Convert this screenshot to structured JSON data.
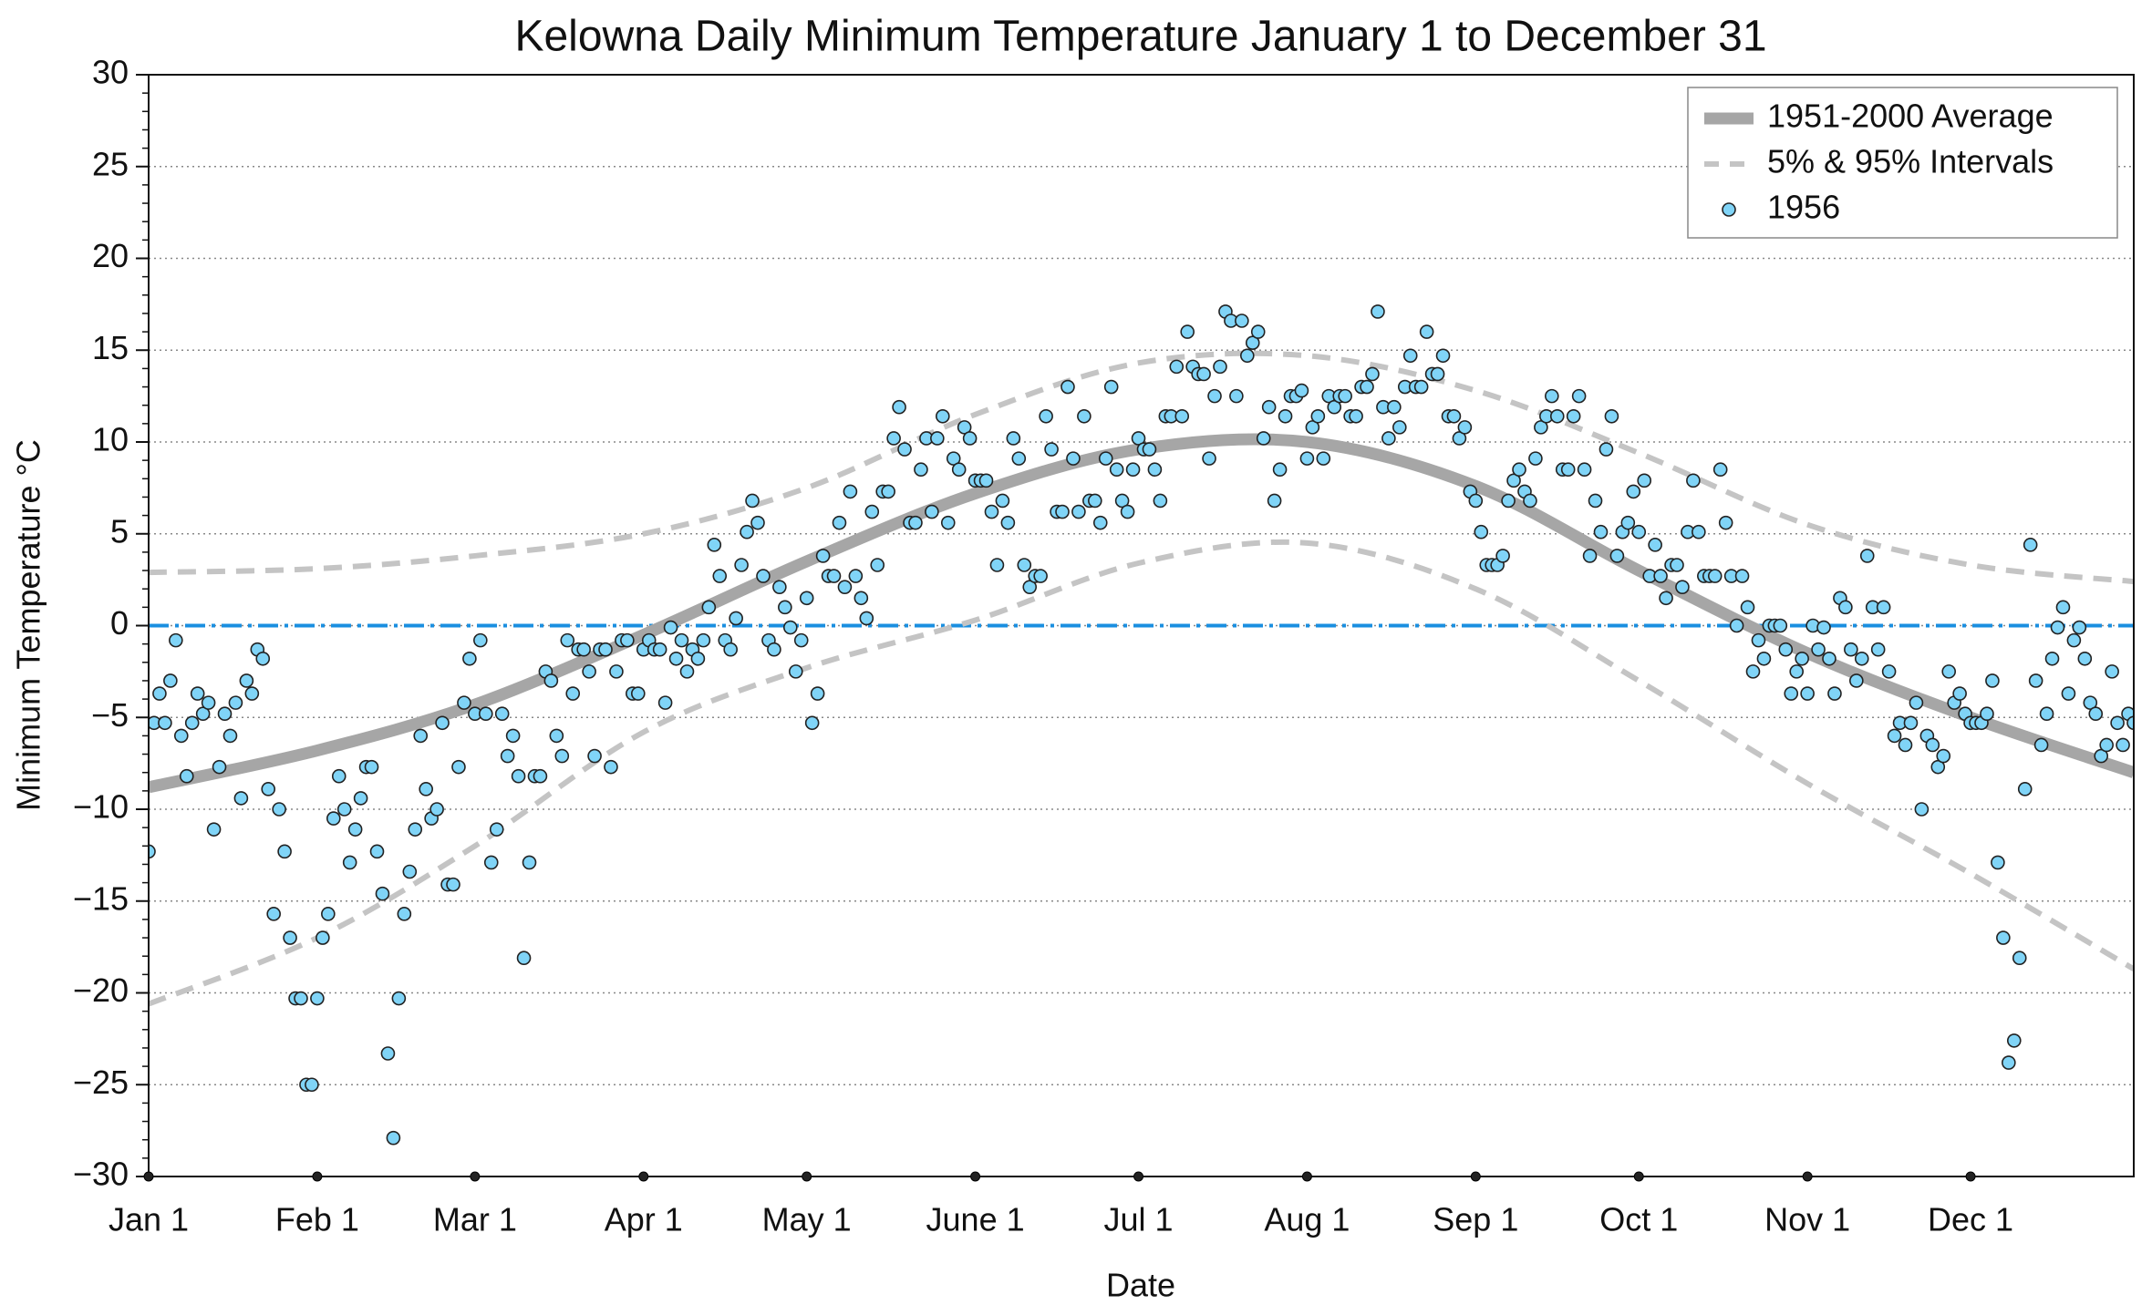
{
  "chart_data": {
    "type": "scatter",
    "title": "Kelowna Daily Minimum Temperature January 1 to December 31",
    "xlabel": "Date",
    "ylabel": "Minimum Temperature °C",
    "xlim": [
      1,
      366
    ],
    "xticks": [
      {
        "value": 1,
        "label": "Jan 1"
      },
      {
        "value": 32,
        "label": "Feb 1"
      },
      {
        "value": 61,
        "label": "Mar 1"
      },
      {
        "value": 92,
        "label": "Apr 1"
      },
      {
        "value": 122,
        "label": "May 1"
      },
      {
        "value": 153,
        "label": "June 1"
      },
      {
        "value": 183,
        "label": "Jul 1"
      },
      {
        "value": 214,
        "label": "Aug 1"
      },
      {
        "value": 245,
        "label": "Sep 1"
      },
      {
        "value": 275,
        "label": "Oct 1"
      },
      {
        "value": 306,
        "label": "Nov 1"
      },
      {
        "value": 336,
        "label": "Dec 1"
      }
    ],
    "ylim": [
      -30,
      30
    ],
    "yticks": [
      {
        "value": -30,
        "label": "−30"
      },
      {
        "value": -25,
        "label": "−25"
      },
      {
        "value": -20,
        "label": "−20"
      },
      {
        "value": -15,
        "label": "−15"
      },
      {
        "value": -10,
        "label": "−10"
      },
      {
        "value": -5,
        "label": "−5"
      },
      0,
      5,
      10,
      15,
      20,
      25,
      30
    ],
    "grid": true,
    "reference_line": {
      "value": 0,
      "color": "#1a8fe0"
    },
    "legend": "upper right",
    "series": [
      {
        "name": "1951-2000 Average",
        "kind": "line",
        "color": "#a6a6a6",
        "x": [
          1,
          32,
          61,
          92,
          122,
          153,
          183,
          214,
          245,
          275,
          306,
          336,
          366
        ],
        "values": [
          -8.8,
          -6.8,
          -4.3,
          -0.5,
          3.5,
          7.2,
          9.6,
          10.0,
          7.6,
          3.0,
          -1.5,
          -5.0,
          -8.0
        ]
      },
      {
        "name": "5% & 95% Intervals",
        "kind": "band",
        "color": "#c4c4c4",
        "x": [
          1,
          32,
          61,
          92,
          122,
          153,
          183,
          214,
          245,
          275,
          306,
          336,
          366
        ],
        "upper": [
          2.9,
          3.1,
          3.8,
          5.0,
          7.5,
          11.5,
          14.3,
          14.7,
          12.8,
          9.4,
          5.5,
          3.3,
          2.4
        ],
        "lower": [
          -20.6,
          -17.0,
          -12.0,
          -5.8,
          -2.3,
          0.3,
          3.4,
          4.5,
          2.0,
          -3.0,
          -8.6,
          -13.5,
          -18.7
        ]
      },
      {
        "name": "1956",
        "kind": "points",
        "color": "#80d4f7",
        "x": [
          1,
          2,
          3,
          4,
          5,
          6,
          7,
          8,
          9,
          10,
          11,
          12,
          13,
          14,
          15,
          16,
          17,
          18,
          19,
          20,
          21,
          22,
          23,
          24,
          25,
          26,
          27,
          28,
          29,
          30,
          31,
          32,
          33,
          34,
          35,
          36,
          37,
          38,
          39,
          40,
          41,
          42,
          43,
          44,
          45,
          46,
          47,
          48,
          49,
          50,
          51,
          52,
          53,
          54,
          55,
          56,
          57,
          58,
          59,
          60,
          61,
          62,
          63,
          64,
          65,
          66,
          67,
          68,
          69,
          70,
          71,
          72,
          73,
          74,
          75,
          76,
          77,
          78,
          79,
          80,
          81,
          82,
          83,
          84,
          85,
          86,
          87,
          88,
          89,
          90,
          91,
          92,
          93,
          94,
          95,
          96,
          97,
          98,
          99,
          100,
          101,
          102,
          103,
          104,
          105,
          106,
          107,
          108,
          109,
          110,
          111,
          112,
          113,
          114,
          115,
          116,
          117,
          118,
          119,
          120,
          121,
          122,
          123,
          124,
          125,
          126,
          127,
          128,
          129,
          130,
          131,
          132,
          133,
          134,
          135,
          136,
          137,
          138,
          139,
          140,
          141,
          142,
          143,
          144,
          145,
          146,
          147,
          148,
          149,
          150,
          151,
          152,
          153,
          154,
          155,
          156,
          157,
          158,
          159,
          160,
          161,
          162,
          163,
          164,
          165,
          166,
          167,
          168,
          169,
          170,
          171,
          172,
          173,
          174,
          175,
          176,
          177,
          178,
          179,
          180,
          181,
          182,
          183,
          184,
          185,
          186,
          187,
          188,
          189,
          190,
          191,
          192,
          193,
          194,
          195,
          196,
          197,
          198,
          199,
          200,
          201,
          202,
          203,
          204,
          205,
          206,
          207,
          208,
          209,
          210,
          211,
          212,
          213,
          214,
          215,
          216,
          217,
          218,
          219,
          220,
          221,
          222,
          223,
          224,
          225,
          226,
          227,
          228,
          229,
          230,
          231,
          232,
          233,
          234,
          235,
          236,
          237,
          238,
          239,
          240,
          241,
          242,
          243,
          244,
          245,
          246,
          247,
          248,
          249,
          250,
          251,
          252,
          253,
          254,
          255,
          256,
          257,
          258,
          259,
          260,
          261,
          262,
          263,
          264,
          265,
          266,
          267,
          268,
          269,
          270,
          271,
          272,
          273,
          274,
          275,
          276,
          277,
          278,
          279,
          280,
          281,
          282,
          283,
          284,
          285,
          286,
          287,
          288,
          289,
          290,
          291,
          292,
          293,
          294,
          295,
          296,
          297,
          298,
          299,
          300,
          301,
          302,
          303,
          304,
          305,
          306,
          307,
          308,
          309,
          310,
          311,
          312,
          313,
          314,
          315,
          316,
          317,
          318,
          319,
          320,
          321,
          322,
          323,
          324,
          325,
          326,
          327,
          328,
          329,
          330,
          331,
          332,
          333,
          334,
          335,
          336,
          337,
          338,
          339,
          340,
          341,
          342,
          343,
          344,
          345,
          346,
          347,
          348,
          349,
          350,
          351,
          352,
          353,
          354,
          355,
          356,
          357,
          358,
          359,
          360,
          361,
          362,
          363,
          364,
          365,
          366
        ],
        "values": [
          -12.3,
          -5.3,
          -3.7,
          -5.3,
          -3,
          -0.8,
          -6,
          -8.2,
          -5.3,
          -3.7,
          -4.8,
          -4.2,
          -11.1,
          -7.7,
          -4.8,
          -6,
          -4.2,
          -9.4,
          -3,
          -3.7,
          -1.3,
          -1.8,
          -8.9,
          -15.7,
          -10,
          -12.3,
          -17,
          -20.3,
          -20.3,
          -25,
          -25,
          -20.3,
          -17,
          -15.7,
          -10.5,
          -8.2,
          -10,
          -12.9,
          -11.1,
          -9.4,
          -7.7,
          -7.7,
          -12.3,
          -14.6,
          -23.3,
          -27.9,
          -20.3,
          -15.7,
          -13.4,
          -11.1,
          -6,
          -8.9,
          -10.5,
          -10,
          -5.3,
          -14.1,
          -14.1,
          -7.7,
          -4.2,
          -1.8,
          -4.8,
          -0.8,
          -4.8,
          -12.9,
          -11.1,
          -4.8,
          -7.1,
          -6,
          -8.2,
          -18.1,
          -12.9,
          -8.2,
          -8.2,
          -2.5,
          -3,
          -6,
          -7.1,
          -0.8,
          -3.7,
          -1.3,
          -1.3,
          -2.5,
          -7.1,
          -1.3,
          -1.3,
          -7.7,
          -2.5,
          -0.8,
          -0.8,
          -3.7,
          -3.7,
          -1.3,
          -0.8,
          -1.3,
          -1.3,
          -4.2,
          -0.1,
          -1.8,
          -0.8,
          -2.5,
          -1.3,
          -1.8,
          -0.8,
          1,
          4.4,
          2.7,
          -0.8,
          -1.3,
          0.4,
          3.3,
          5.1,
          6.8,
          5.6,
          2.7,
          -0.8,
          -1.3,
          2.1,
          1,
          -0.1,
          -2.5,
          -0.8,
          1.5,
          -5.3,
          -3.7,
          3.8,
          2.7,
          2.7,
          5.6,
          2.1,
          7.3,
          2.7,
          1.5,
          0.4,
          6.2,
          3.3,
          7.3,
          7.3,
          10.2,
          11.9,
          9.6,
          5.6,
          5.6,
          8.5,
          10.2,
          6.2,
          10.2,
          11.4,
          5.6,
          9.1,
          8.5,
          10.8,
          10.2,
          7.9,
          7.9,
          7.9,
          6.2,
          3.3,
          6.8,
          5.6,
          10.2,
          9.1,
          3.3,
          2.1,
          2.7,
          2.7,
          11.4,
          9.6,
          6.2,
          6.2,
          13,
          9.1,
          6.2,
          11.4,
          6.8,
          6.8,
          5.6,
          9.1,
          13,
          8.5,
          6.8,
          6.2,
          8.5,
          10.2,
          9.6,
          9.6,
          8.5,
          6.8,
          11.4,
          11.4,
          14.1,
          11.4,
          16,
          14.1,
          13.7,
          13.7,
          9.1,
          12.5,
          14.1,
          17.1,
          16.6,
          12.5,
          16.6,
          14.7,
          15.4,
          16,
          10.2,
          11.9,
          6.8,
          8.5,
          11.4,
          12.5,
          12.5,
          12.8,
          9.1,
          10.8,
          11.4,
          9.1,
          12.5,
          11.9,
          12.5,
          12.5,
          11.4,
          11.4,
          13,
          13,
          13.7,
          17.1,
          11.9,
          10.2,
          11.9,
          10.8,
          13,
          14.7,
          13,
          13,
          16,
          13.7,
          13.7,
          14.7,
          11.4,
          11.4,
          10.2,
          10.8,
          7.3,
          6.8,
          5.1,
          3.3,
          3.3,
          3.3,
          3.8,
          6.8,
          7.9,
          8.5,
          7.3,
          6.8,
          9.1,
          10.8,
          11.4,
          12.5,
          11.4,
          8.5,
          8.5,
          11.4,
          12.5,
          8.5,
          3.8,
          6.8,
          5.1,
          9.6,
          11.4,
          3.8,
          5.1,
          5.6,
          7.3,
          5.1,
          7.9,
          2.7,
          4.4,
          2.7,
          1.5,
          3.3,
          3.3,
          2.1,
          5.1,
          7.9,
          5.1,
          2.7,
          2.7,
          2.7,
          8.5,
          5.6,
          2.7,
          0,
          2.7,
          1,
          -2.5,
          -0.8,
          -1.8,
          0,
          0,
          0,
          -1.3,
          -3.7,
          -2.5,
          -1.8,
          -3.7,
          0,
          -1.3,
          -0.1,
          -1.8,
          -3.7,
          1.5,
          1,
          -1.3,
          -3,
          -1.8,
          3.8,
          1,
          -1.3,
          1,
          -2.5,
          -6,
          -5.3,
          -6.5,
          -5.3,
          -4.2,
          -10,
          -6,
          -6.5,
          -7.7,
          -7.1,
          -2.5,
          -4.2,
          -3.7,
          -4.8,
          -5.3,
          -5.3,
          -5.3,
          -4.8,
          -3,
          -12.9,
          -17,
          -23.8,
          -22.6,
          -18.1,
          -8.9,
          4.4,
          -3,
          -6.5,
          -4.8,
          -1.8,
          -0.1,
          1,
          -3.7,
          -0.8,
          -0.1,
          -1.8,
          -4.2,
          -4.8,
          -7.1,
          -6.5,
          -2.5,
          -5.3,
          -6.5,
          -4.8,
          -5.3
        ]
      }
    ]
  }
}
